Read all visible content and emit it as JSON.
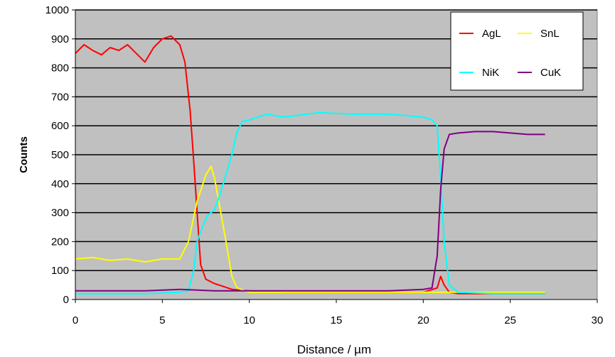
{
  "chart_data": {
    "type": "line",
    "title": "",
    "xlabel": "Distance / µm",
    "ylabel": "Counts",
    "xlim": [
      0,
      30
    ],
    "ylim": [
      0,
      1000
    ],
    "x_ticks": [
      "0",
      "5",
      "10",
      "15",
      "20",
      "25",
      "30"
    ],
    "y_ticks": [
      "0",
      "100",
      "200",
      "300",
      "400",
      "500",
      "600",
      "700",
      "800",
      "900",
      "1000"
    ],
    "plot_background": "#c0c0c0",
    "grid": "horizontal",
    "legend_position": "top-right",
    "series": [
      {
        "name": "AgL",
        "color": "#ff0000",
        "x": [
          0,
          0.5,
          1,
          1.5,
          2,
          2.5,
          3,
          3.5,
          4,
          4.5,
          5,
          5.5,
          6,
          6.3,
          6.6,
          6.8,
          7,
          7.2,
          7.5,
          8,
          8.5,
          9,
          10,
          12,
          15,
          18,
          20,
          20.8,
          21,
          21.2,
          21.5,
          22,
          25,
          27
        ],
        "y": [
          850,
          880,
          860,
          845,
          870,
          860,
          880,
          850,
          820,
          870,
          900,
          910,
          880,
          820,
          650,
          480,
          300,
          120,
          70,
          55,
          45,
          35,
          30,
          25,
          25,
          25,
          25,
          40,
          80,
          50,
          25,
          20,
          20,
          20
        ]
      },
      {
        "name": "SnL",
        "color": "#ffff00",
        "x": [
          0,
          1,
          2,
          3,
          4,
          5,
          6,
          6.5,
          7,
          7.5,
          7.8,
          8,
          8.3,
          8.6,
          9,
          9.3,
          10,
          12,
          15,
          20,
          25,
          27
        ],
        "y": [
          140,
          145,
          135,
          140,
          130,
          140,
          140,
          200,
          340,
          430,
          460,
          420,
          320,
          220,
          80,
          40,
          25,
          25,
          25,
          25,
          25,
          25
        ]
      },
      {
        "name": "NiK",
        "color": "#00ffff",
        "x": [
          0,
          2,
          4,
          6,
          6.5,
          6.8,
          7,
          7.3,
          7.6,
          8,
          8.3,
          8.6,
          9,
          9.3,
          9.6,
          10,
          11,
          12,
          14,
          16,
          18,
          20,
          20.5,
          20.8,
          21,
          21.2,
          21.5,
          22,
          24,
          27
        ],
        "y": [
          20,
          20,
          20,
          25,
          30,
          100,
          200,
          250,
          290,
          310,
          360,
          420,
          500,
          580,
          615,
          620,
          640,
          630,
          645,
          640,
          640,
          630,
          620,
          600,
          420,
          200,
          50,
          25,
          20,
          20
        ]
      },
      {
        "name": "CuK",
        "color": "#800080",
        "x": [
          0,
          2,
          4,
          6,
          8,
          10,
          12,
          14,
          16,
          18,
          20,
          20.5,
          20.8,
          21,
          21.2,
          21.5,
          22,
          23,
          24,
          25,
          26,
          27
        ],
        "y": [
          30,
          30,
          30,
          35,
          30,
          30,
          30,
          30,
          30,
          30,
          35,
          40,
          150,
          380,
          520,
          570,
          575,
          580,
          580,
          575,
          570,
          570
        ]
      }
    ]
  }
}
